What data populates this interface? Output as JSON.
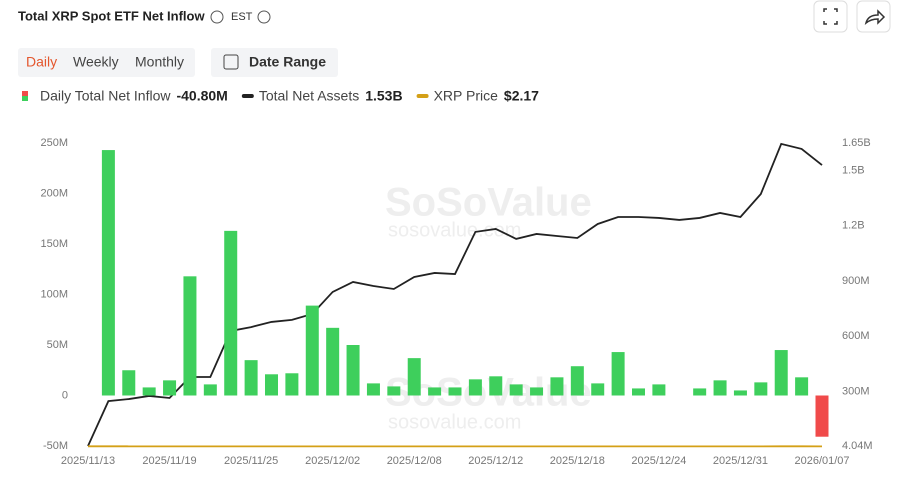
{
  "ui": {
    "title": "Total XRP Spot ETF Net Inflow",
    "timezone": "EST",
    "tabs": [
      "Daily",
      "Weekly",
      "Monthly"
    ],
    "date_range": "Date Range",
    "legend_values": [
      "-40.80M",
      "1.53B",
      "$2.17"
    ],
    "watermark": [
      "SoSoValue",
      "sosovalue.com"
    ]
  },
  "chart_data": {
    "type": "bar-line",
    "categories": [
      "2025/11/13",
      null,
      null,
      null,
      "2025/11/19",
      null,
      null,
      null,
      "2025/11/25",
      null,
      null,
      null,
      "2025/12/02",
      null,
      null,
      null,
      "2025/12/08",
      null,
      null,
      null,
      "2025/12/12",
      null,
      null,
      null,
      "2025/12/18",
      null,
      null,
      null,
      "2025/12/24",
      null,
      null,
      null,
      "2025/12/31",
      null,
      null,
      null,
      "2026/01/07"
    ],
    "series": [
      {
        "name": "Daily Total Net Inflow",
        "type": "bar",
        "color": "#3ecf5c",
        "negative_color": "#f04a4a",
        "values": [
          0,
          243,
          25,
          8,
          15,
          118,
          11,
          163,
          35,
          21,
          22,
          89,
          67,
          50,
          12,
          9,
          37,
          8,
          8,
          16,
          19,
          11,
          8,
          18,
          29,
          12,
          43,
          7,
          11,
          0,
          7,
          15,
          5,
          13,
          45,
          18,
          -40.8
        ]
      },
      {
        "name": "Total Net Assets",
        "type": "line",
        "axis": "y2",
        "color": "#222222",
        "values": [
          4.04,
          248,
          259,
          276,
          265,
          379,
          379,
          629,
          650,
          678,
          689,
          721,
          841,
          895,
          873,
          857,
          922,
          944,
          938,
          1167,
          1183,
          1129,
          1156,
          1145,
          1134,
          1210,
          1248,
          1248,
          1243,
          1232,
          1243,
          1270,
          1248,
          1373,
          1645,
          1618,
          1530
        ]
      },
      {
        "name": "XRP Price",
        "type": "line",
        "axis": "y2",
        "color": "#d4a017",
        "values": [
          2.4,
          2.4,
          2.2,
          2.2,
          2.1,
          2.0,
          1.9,
          1.9,
          2.2,
          2.2,
          2.2,
          2.2,
          2.1,
          2.2,
          2.1,
          2.0,
          2.0,
          2.0,
          2.0,
          2.0,
          2.0,
          2.0,
          1.9,
          1.8,
          1.8,
          1.9,
          1.9,
          1.9,
          1.9,
          1.9,
          1.9,
          1.9,
          1.9,
          2.0,
          2.4,
          2.3,
          2.17
        ]
      }
    ],
    "ylim": [
      -50,
      250
    ],
    "yticks": [
      {
        "value": -50,
        "label": "-50M"
      },
      0,
      {
        "value": 50,
        "label": "50M"
      },
      {
        "value": 100,
        "label": "100M"
      },
      {
        "value": 150,
        "label": "150M"
      },
      {
        "value": 200,
        "label": "200M"
      },
      {
        "value": 250,
        "label": "250M"
      }
    ],
    "y2lim": [
      4.04,
      1650
    ],
    "y2ticks": [
      {
        "value": 4.04,
        "label": "4.04M"
      },
      {
        "value": 300,
        "label": "300M"
      },
      {
        "value": 600,
        "label": "600M"
      },
      {
        "value": 900,
        "label": "900M"
      },
      {
        "value": 1200,
        "label": "1.2B"
      },
      {
        "value": 1500,
        "label": "1.5B"
      },
      {
        "value": 1650,
        "label": "1.65B"
      }
    ]
  }
}
